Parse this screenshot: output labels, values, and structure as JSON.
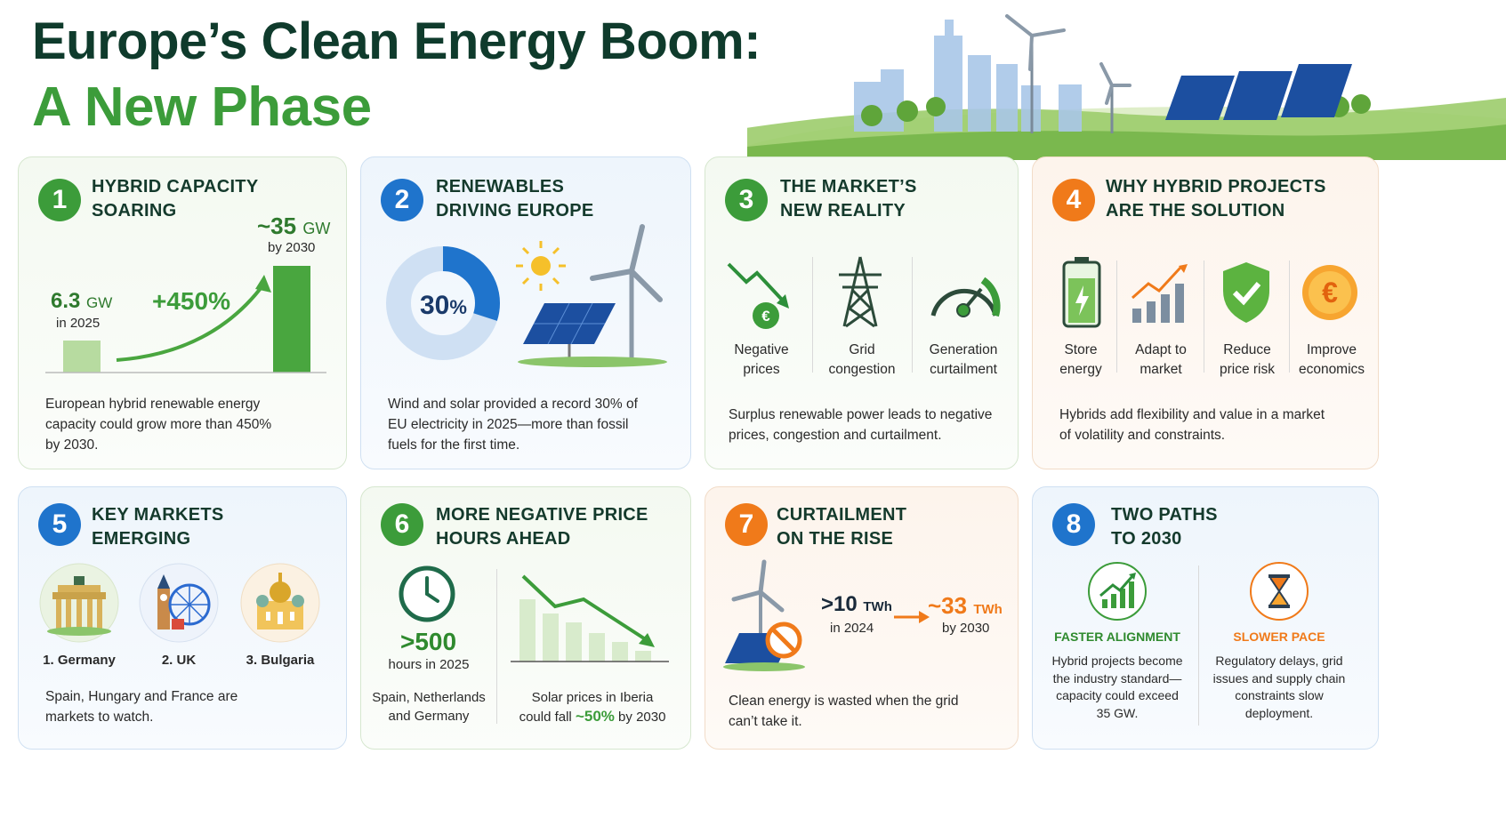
{
  "title": {
    "line1": "Europe’s Clean Energy Boom:",
    "line2": "A New Phase"
  },
  "cards": [
    {
      "num": "1",
      "title1": "HYBRID CAPACITY",
      "title2": "SOARING",
      "left_value": "6.3",
      "left_unit": "GW",
      "left_sub": "in 2025",
      "growth": "+450%",
      "right_value": "~35",
      "right_unit": "GW",
      "right_sub": "by 2030",
      "desc": [
        "European hybrid renewable energy",
        "capacity could grow more than 450%",
        "by 2030."
      ]
    },
    {
      "num": "2",
      "title1": "RENEWABLES",
      "title2": "DRIVING EUROPE",
      "donut_value": "30",
      "donut_unit": "%",
      "donut_fraction": 0.3,
      "desc": [
        "Wind and solar provided a record 30% of",
        "EU electricity in 2025—more than fossil",
        "fuels for the first time."
      ]
    },
    {
      "num": "3",
      "title1": "THE MARKET’S",
      "title2": "NEW REALITY",
      "items": [
        {
          "l1": "Negative",
          "l2": "prices",
          "icon": "falling-price-euro-icon"
        },
        {
          "l1": "Grid",
          "l2": "congestion",
          "icon": "transmission-tower-icon"
        },
        {
          "l1": "Generation",
          "l2": "curtailment",
          "icon": "gauge-icon"
        }
      ],
      "desc": [
        "Surplus renewable power leads to negative",
        "prices, congestion and curtailment."
      ]
    },
    {
      "num": "4",
      "title1": "WHY HYBRID PROJECTS",
      "title2": "ARE THE SOLUTION",
      "items": [
        {
          "l1": "Store",
          "l2": "energy",
          "icon": "battery-icon"
        },
        {
          "l1": "Adapt to",
          "l2": "market",
          "icon": "bar-chart-icon"
        },
        {
          "l1": "Reduce",
          "l2": "price risk",
          "icon": "shield-check-icon"
        },
        {
          "l1": "Improve",
          "l2": "economics",
          "icon": "euro-coin-icon"
        }
      ],
      "desc": [
        "Hybrids add flexibility and value in a market",
        "of volatility and constraints."
      ]
    },
    {
      "num": "5",
      "title1": "KEY MARKETS",
      "title2": "EMERGING",
      "markets": [
        "1. Germany",
        "2. UK",
        "3. Bulgaria"
      ],
      "desc": [
        "Spain, Hungary and France are",
        "markets to watch."
      ]
    },
    {
      "num": "6",
      "title1": "MORE NEGATIVE PRICE",
      "title2": "HOURS AHEAD",
      "hours_value": ">500",
      "hours_sub": "hours in 2025",
      "left_desc": [
        "Spain, Netherlands",
        "and Germany"
      ],
      "right_desc1": "Solar prices in Iberia",
      "right_desc2a": "could fall ",
      "right_desc2b": "~50%",
      "right_desc2c": " by 2030"
    },
    {
      "num": "7",
      "title1": "CURTAILMENT",
      "title2": "ON THE RISE",
      "from_value": ">10",
      "from_unit": "TWh",
      "from_sub": "in 2024",
      "to_value": "~33",
      "to_unit": "TWh",
      "to_sub": "by 2030",
      "desc": [
        "Clean energy is wasted when the grid",
        "can’t take it."
      ]
    },
    {
      "num": "8",
      "title1": "TWO PATHS",
      "title2": "TO 2030",
      "left_head": "FASTER ALIGNMENT",
      "left_desc": [
        "Hybrid projects become",
        "the industry standard—",
        "capacity could exceed",
        "35 GW."
      ],
      "right_head": "SLOWER PACE",
      "right_desc": [
        "Regulatory delays, grid",
        "issues and supply chain",
        "constraints slow",
        "deployment."
      ]
    }
  ]
}
